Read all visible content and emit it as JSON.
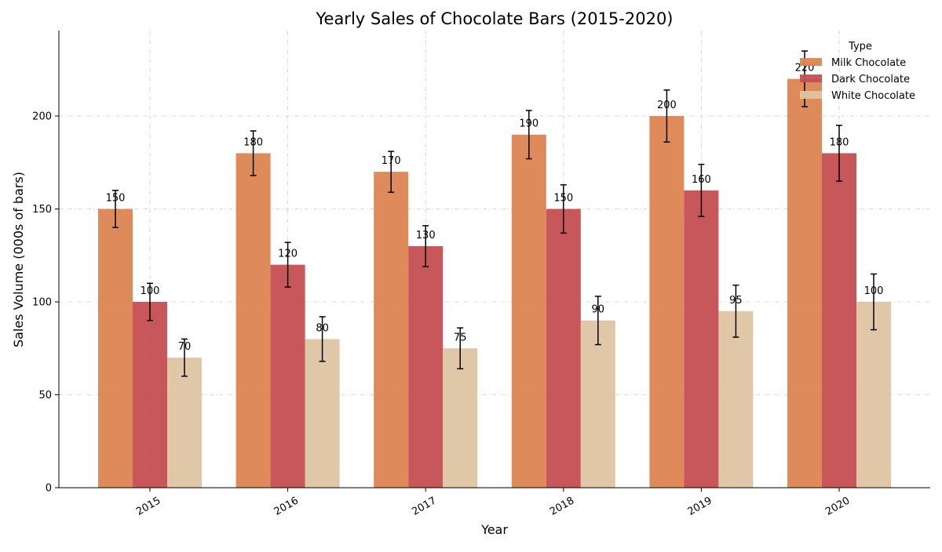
{
  "chart_data": {
    "type": "bar",
    "title": "Yearly Sales of Chocolate Bars (2015-2020)",
    "xlabel": "Year",
    "ylabel": "Sales Volume (000s of bars)",
    "categories": [
      "2015",
      "2016",
      "2017",
      "2018",
      "2019",
      "2020"
    ],
    "ylim": [
      0,
      246
    ],
    "yticks": [
      0,
      50,
      100,
      150,
      200
    ],
    "grid": true,
    "legend": {
      "title": "Type",
      "placement": "top-right"
    },
    "series": [
      {
        "name": "Milk Chocolate",
        "color": "#dd8452",
        "values": [
          150,
          180,
          170,
          190,
          200,
          220
        ],
        "errors": [
          10,
          12,
          11,
          13,
          14,
          15
        ]
      },
      {
        "name": "Dark Chocolate",
        "color": "#c44e52",
        "values": [
          100,
          120,
          130,
          150,
          160,
          180
        ],
        "errors": [
          10,
          12,
          11,
          13,
          14,
          15
        ]
      },
      {
        "name": "White Chocolate",
        "color": "#ddc4a3",
        "values": [
          70,
          80,
          75,
          90,
          95,
          100
        ],
        "errors": [
          10,
          12,
          11,
          13,
          14,
          15
        ]
      }
    ]
  }
}
